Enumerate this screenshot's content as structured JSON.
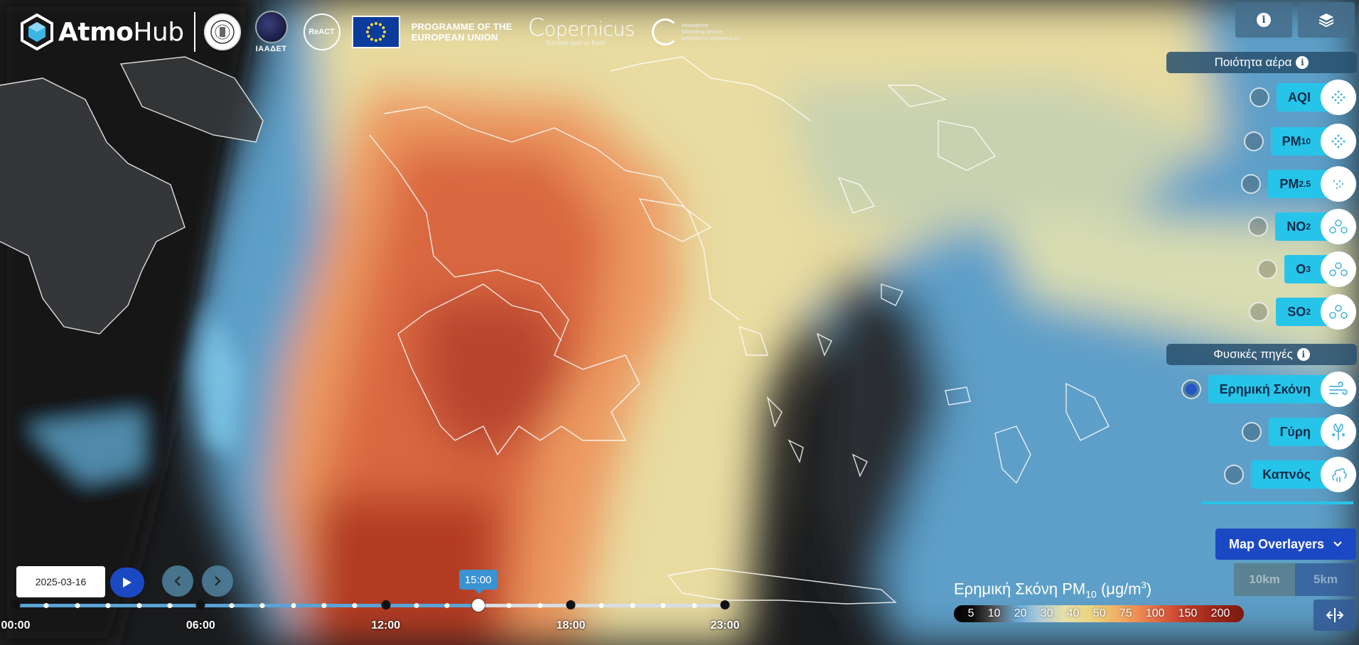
{
  "brand": {
    "name_bold": "Atmo",
    "name_regular": "Hub"
  },
  "partners": {
    "iaa_label": "ΙΑΑΔΕΤ",
    "react_label": "ReACT",
    "eu_text_line1": "PROGRAMME OF THE",
    "eu_text_line2": "EUROPEAN UNION",
    "copernicus_name": "opernicus",
    "copernicus_tagline": "Europe's eyes on Earth",
    "atmosphere_line1": "Atmosphere",
    "atmosphere_line2": "Monitoring Service",
    "atmosphere_url": "atmosphere.copernicus.eu"
  },
  "top_buttons": {
    "info_icon": "info-icon",
    "layers_icon": "layers-icon"
  },
  "sections": {
    "air_quality": "Ποιότητα αέρα",
    "natural_sources": "Φυσικές πηγές"
  },
  "layers": {
    "aqi": {
      "label": "AQI",
      "icon": "dots-icon"
    },
    "pm10": {
      "main": "PM",
      "sub": "10",
      "icon": "dots-icon"
    },
    "pm25": {
      "main": "PM",
      "sub": "2.5",
      "icon": "dots-icon"
    },
    "no2": {
      "main": "NO",
      "sub": "2",
      "icon": "molecule-icon"
    },
    "o3": {
      "main": "O",
      "sub": "3",
      "icon": "molecule-icon"
    },
    "so2": {
      "main": "SO",
      "sub": "2",
      "icon": "molecule-icon"
    },
    "dust": {
      "label": "Ερημική Σκόνη",
      "icon": "wind-icon",
      "active": true
    },
    "pollen": {
      "label": "Γύρη",
      "icon": "pollen-icon"
    },
    "smoke": {
      "label": "Καπνός",
      "icon": "smoke-icon"
    }
  },
  "overlays": {
    "label": "Map Overlayers",
    "res_10": "10km",
    "res_5": "5km"
  },
  "legend": {
    "title_main": "Ερημική Σκόνη PM",
    "title_sub": "10",
    "title_unit_open": " (μg/m",
    "title_unit_sup": "3",
    "title_unit_close": ")",
    "values": [
      "5",
      "10",
      "20",
      "30",
      "40",
      "50",
      "75",
      "100",
      "150",
      "200"
    ]
  },
  "timeline": {
    "date": "2025-03-16",
    "current_time": "15:00",
    "labels": [
      "00:00",
      "06:00",
      "12:00",
      "18:00",
      "23:00"
    ],
    "progress_fraction": 0.652
  }
}
